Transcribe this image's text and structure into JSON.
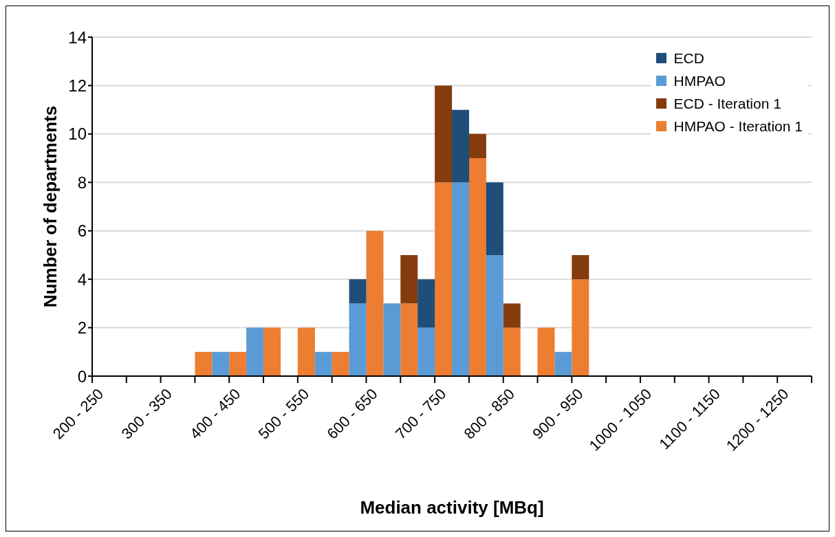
{
  "chart_data": {
    "type": "bar",
    "stacked": true,
    "xlabel": "Median activity [MBq]",
    "ylabel": "Number of departments",
    "categories": [
      "200 - 250",
      null,
      null,
      null,
      "300 - 350",
      null,
      null,
      null,
      "400 - 450",
      null,
      null,
      null,
      "500 - 550",
      null,
      null,
      null,
      "600 - 650",
      null,
      null,
      null,
      "700 - 750",
      null,
      null,
      null,
      "800 - 850",
      null,
      null,
      null,
      "900 - 950",
      null,
      null,
      null,
      "1000 - 1050",
      null,
      null,
      null,
      "1100 - 1150",
      null,
      null,
      null,
      "1200 - 1250",
      null
    ],
    "series": [
      {
        "name": "HMPAO - Iteration 1",
        "color": "#ed7d31",
        "values": [
          0,
          0,
          0,
          0,
          0,
          0,
          1,
          0,
          1,
          0,
          2,
          0,
          2,
          0,
          1,
          0,
          6,
          0,
          3,
          0,
          8,
          0,
          9,
          0,
          2,
          0,
          2,
          0,
          4,
          0,
          0,
          0,
          0,
          0,
          0,
          0,
          0,
          0,
          0,
          0,
          0,
          0
        ]
      },
      {
        "name": "ECD - Iteration 1",
        "color": "#843c0c",
        "values": [
          0,
          0,
          0,
          0,
          0,
          0,
          0,
          0,
          0,
          0,
          0,
          0,
          0,
          0,
          0,
          0,
          0,
          0,
          2,
          0,
          4,
          0,
          1,
          0,
          1,
          0,
          0,
          0,
          1,
          0,
          0,
          0,
          0,
          0,
          0,
          0,
          0,
          0,
          0,
          0,
          0,
          0
        ]
      },
      {
        "name": "HMPAO",
        "color": "#5b9bd5",
        "values": [
          0,
          0,
          0,
          0,
          0,
          0,
          0,
          1,
          0,
          2,
          0,
          0,
          0,
          1,
          0,
          3,
          0,
          3,
          0,
          2,
          0,
          8,
          0,
          5,
          0,
          0,
          0,
          1,
          0,
          0,
          0,
          0,
          0,
          0,
          0,
          0,
          0,
          0,
          0,
          0,
          0,
          0
        ]
      },
      {
        "name": "ECD",
        "color": "#1f4e79",
        "values": [
          0,
          0,
          0,
          0,
          0,
          0,
          0,
          0,
          0,
          0,
          0,
          0,
          0,
          0,
          0,
          1,
          0,
          0,
          0,
          2,
          0,
          3,
          0,
          3,
          0,
          0,
          0,
          0,
          0,
          0,
          0,
          0,
          0,
          0,
          0,
          0,
          0,
          0,
          0,
          0,
          0,
          0
        ]
      }
    ],
    "ylim": [
      0,
      14
    ],
    "yticks": [
      0,
      2,
      4,
      6,
      8,
      10,
      12,
      14
    ],
    "grid": "y",
    "legend": "top right"
  }
}
